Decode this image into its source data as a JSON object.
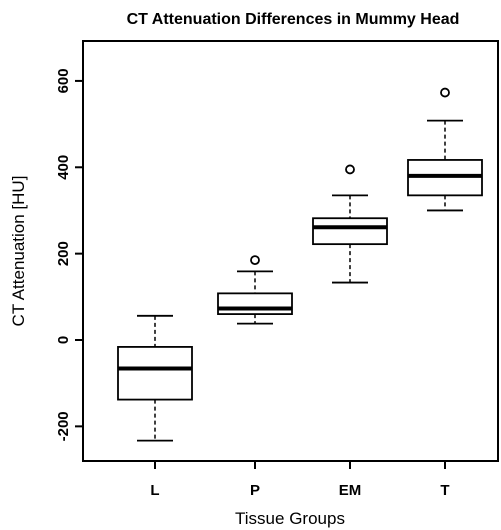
{
  "chart_data": {
    "type": "boxplot",
    "title": "CT Attenuation  Differences in Mummy Head",
    "xlabel": "Tissue Groups",
    "ylabel": "CT Attenuation [HU]",
    "ylim": [
      -280,
      690
    ],
    "yticks": [
      -200,
      0,
      200,
      400,
      600
    ],
    "ytick_labels": [
      "-200",
      "0",
      "200",
      "400",
      "600"
    ],
    "categories": [
      "L",
      "P",
      "EM",
      "T"
    ],
    "boxes": [
      {
        "name": "L",
        "whisker_low": -233,
        "q1": -138,
        "median": -66,
        "q3": -16,
        "whisker_high": 56,
        "outliers": []
      },
      {
        "name": "P",
        "whisker_low": 38,
        "q1": 60,
        "median": 73,
        "q3": 108,
        "whisker_high": 159,
        "outliers": [
          185
        ]
      },
      {
        "name": "EM",
        "whisker_low": 133,
        "q1": 222,
        "median": 261,
        "q3": 282,
        "whisker_high": 335,
        "outliers": [
          395
        ]
      },
      {
        "name": "T",
        "whisker_low": 300,
        "q1": 335,
        "median": 380,
        "q3": 417,
        "whisker_high": 508,
        "outliers": [
          573
        ]
      }
    ],
    "grid": false,
    "colors": {
      "stroke": "#000000",
      "background": "#ffffff"
    }
  }
}
